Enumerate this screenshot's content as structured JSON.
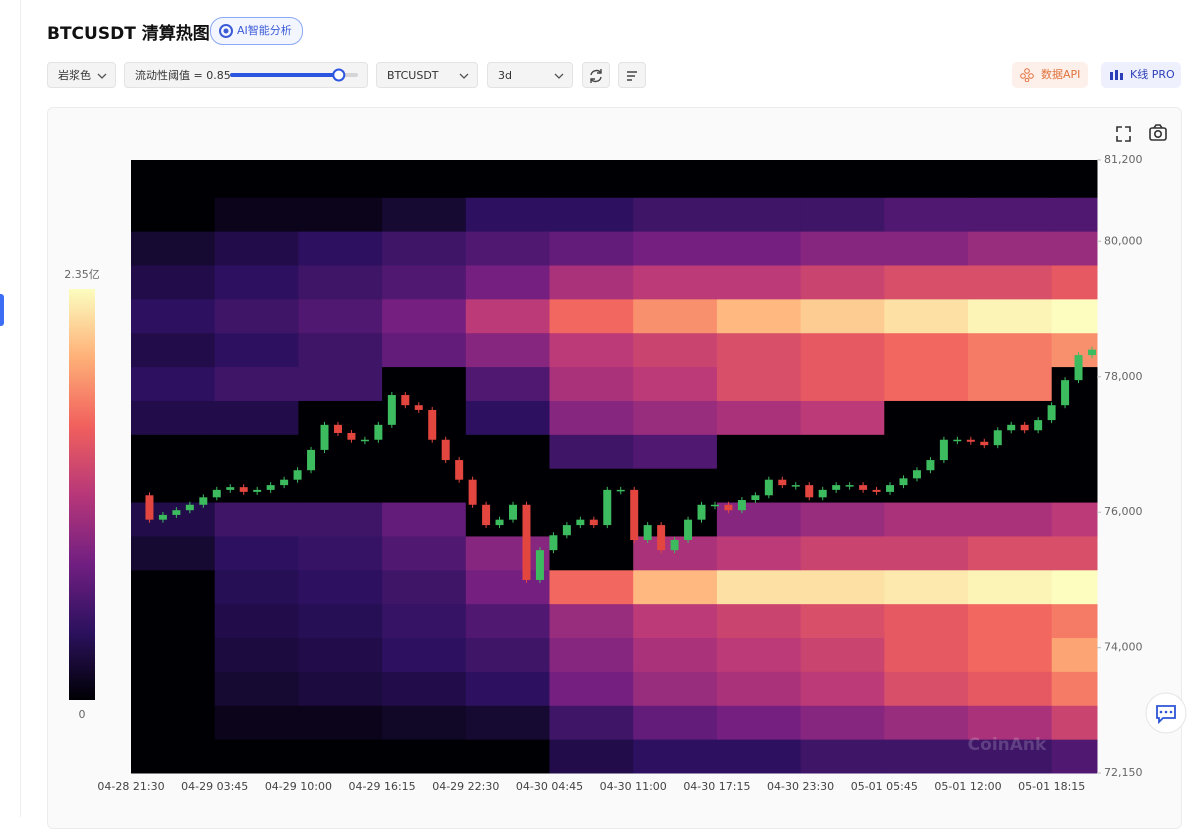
{
  "header": {
    "title": "BTCUSDT 清算热图",
    "ai_button": "AI智能分析"
  },
  "controls": {
    "palette": "岩浆色",
    "threshold_label": "流动性阈值 = 0.85",
    "threshold": 0.85,
    "symbol": "BTCUSDT",
    "range": "3d",
    "api_button": "数据API",
    "pro_button": "K线 PRO"
  },
  "watermark": "CoinAnk",
  "chart_data": {
    "type": "heatmap",
    "categories": [
      "04-28 21:30",
      "04-29 03:45",
      "04-29 10:00",
      "04-29 16:15",
      "04-29 22:30",
      "04-30 04:45",
      "04-30 11:00",
      "04-30 17:15",
      "04-30 23:30",
      "05-01 05:45",
      "05-01 12:00",
      "05-01 18:15"
    ],
    "ybins": [
      72150,
      72650,
      73150,
      73650,
      74150,
      74650,
      75150,
      75650,
      76150,
      76650,
      77150,
      77650,
      78150,
      78650,
      79150,
      79650,
      80150,
      80650,
      81200
    ],
    "values": [
      [
        0,
        0,
        0,
        0,
        0,
        0.3,
        0.4,
        0.4,
        0.5,
        0.5,
        0.5,
        0.6
      ],
      [
        0,
        0.1,
        0.1,
        0.15,
        0.2,
        0.5,
        0.7,
        0.8,
        0.9,
        1.0,
        1.1,
        1.3
      ],
      [
        0,
        0.2,
        0.25,
        0.3,
        0.4,
        0.8,
        1.0,
        1.1,
        1.2,
        1.4,
        1.5,
        1.7
      ],
      [
        0,
        0.25,
        0.3,
        0.4,
        0.5,
        0.9,
        1.1,
        1.2,
        1.3,
        1.5,
        1.6,
        1.9
      ],
      [
        0,
        0.3,
        0.35,
        0.45,
        0.6,
        1.0,
        1.2,
        1.3,
        1.4,
        1.5,
        1.6,
        1.7
      ],
      [
        0,
        0.35,
        0.4,
        0.5,
        0.8,
        1.6,
        2.0,
        2.2,
        2.2,
        2.25,
        2.3,
        2.35
      ],
      [
        0.2,
        0.4,
        0.45,
        0.6,
        0.9,
        0,
        1.1,
        1.2,
        1.3,
        1.3,
        1.4,
        1.4
      ],
      [
        0.3,
        0.5,
        0.5,
        0.7,
        0,
        0,
        0,
        0.9,
        1.0,
        1.1,
        1.1,
        1.2
      ],
      [
        0,
        0,
        0,
        0,
        0,
        0,
        0,
        0,
        0,
        0,
        0,
        0
      ],
      [
        0,
        0,
        0,
        0,
        0,
        0.5,
        0.6,
        0,
        0,
        0,
        0,
        0
      ],
      [
        0.3,
        0.3,
        0,
        0,
        0.4,
        0.9,
        1.0,
        1.1,
        1.2,
        0,
        0,
        0
      ],
      [
        0.4,
        0.5,
        0.5,
        0,
        0.6,
        1.1,
        1.2,
        1.4,
        1.5,
        1.6,
        1.7,
        0
      ],
      [
        0.3,
        0.4,
        0.5,
        0.7,
        0.9,
        1.2,
        1.3,
        1.4,
        1.5,
        1.6,
        1.7,
        1.8
      ],
      [
        0.4,
        0.5,
        0.6,
        0.8,
        1.2,
        1.6,
        1.8,
        2.0,
        2.1,
        2.2,
        2.3,
        2.35
      ],
      [
        0.3,
        0.4,
        0.5,
        0.6,
        0.8,
        1.1,
        1.2,
        1.2,
        1.3,
        1.4,
        1.4,
        1.5
      ],
      [
        0.2,
        0.3,
        0.4,
        0.5,
        0.6,
        0.7,
        0.8,
        0.8,
        0.9,
        0.9,
        1.0,
        1.0
      ],
      [
        0,
        0.1,
        0.1,
        0.2,
        0.4,
        0.4,
        0.5,
        0.5,
        0.5,
        0.6,
        0.6,
        0.6
      ],
      [
        0,
        0,
        0,
        0,
        0,
        0,
        0,
        0,
        0,
        0,
        0,
        0
      ]
    ],
    "clim": [
      0,
      2.35
    ],
    "cticks": [
      0,
      {
        "value": 2.35,
        "label": "2.35亿"
      }
    ],
    "colormap": [
      "#000004",
      "#2c115f",
      "#721f81",
      "#b73779",
      "#f1605d",
      "#feb078",
      "#fcfdbf"
    ],
    "price": [
      76250,
      75890,
      75960,
      76030,
      76110,
      76220,
      76330,
      76370,
      76300,
      76330,
      76400,
      76480,
      76620,
      76920,
      77290,
      77170,
      77070,
      77070,
      77290,
      77730,
      77580,
      77510,
      77070,
      76770,
      76480,
      76110,
      75810,
      75890,
      76110,
      75000,
      75440,
      75660,
      75810,
      75890,
      75810,
      76330,
      76330,
      75590,
      75810,
      75440,
      75590,
      75890,
      76110,
      76110,
      76030,
      76180,
      76250,
      76480,
      76400,
      76400,
      76220,
      76330,
      76400,
      76400,
      76330,
      76300,
      76400,
      76500,
      76620,
      76770,
      77070,
      77070,
      77040,
      76990,
      77210,
      77290,
      77210,
      77360,
      77580,
      77950,
      78320,
      78400
    ],
    "up_color": "#3dbb5f",
    "down_color": "#e2463f",
    "ylim": [
      72150,
      81200
    ],
    "yticks": [
      {
        "value": 72150,
        "label": "72,150"
      },
      {
        "value": 74000,
        "label": "74,000"
      },
      {
        "value": 76000,
        "label": "76,000"
      },
      {
        "value": 78000,
        "label": "78,000"
      },
      {
        "value": 80000,
        "label": "80,000"
      },
      {
        "value": 81200,
        "label": "81,200"
      }
    ]
  }
}
